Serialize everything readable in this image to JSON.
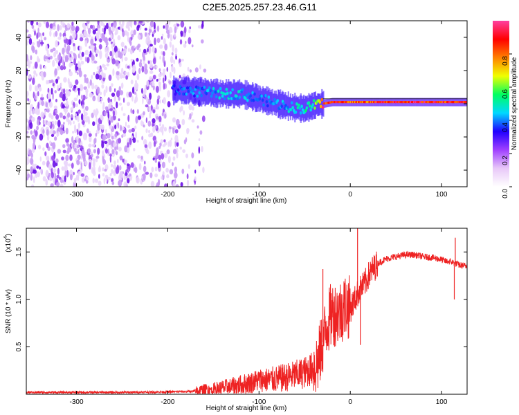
{
  "title": "C2E5.2025.257.23.46.G11",
  "chart_data": [
    {
      "type": "heatmap",
      "title": "C2E5.2025.257.23.46.G11",
      "xlabel": "Height of straight line (km)",
      "ylabel": "Frequency (Hz)",
      "xlim": [
        -355,
        128
      ],
      "ylim": [
        -50,
        50
      ],
      "x_ticks": [
        -300,
        -200,
        -100,
        0,
        100
      ],
      "x_tick_labels": [
        "-300",
        "-200",
        "-100",
        "0",
        "100"
      ],
      "y_ticks": [
        -40,
        -20,
        0,
        20,
        40
      ],
      "y_tick_labels": [
        "-40",
        "-20",
        "0",
        "20",
        "40"
      ],
      "colorbar": {
        "label": "Normalized spectral amplitude",
        "range": [
          0,
          1
        ],
        "ticks": [
          0.0,
          0.2,
          0.4,
          0.6,
          0.8
        ],
        "tick_labels": [
          "0.0",
          "0.2",
          "0.4",
          "0.6",
          "0.8"
        ],
        "colors": [
          "#ffffff",
          "#e8c8f8",
          "#a040ff",
          "#2000ff",
          "#00d8ff",
          "#00ff60",
          "#f0ff00",
          "#ff8000",
          "#ff0000",
          "#ff40a0"
        ]
      },
      "signal_trace": {
        "x": [
          -195,
          -180,
          -160,
          -140,
          -120,
          -100,
          -80,
          -65,
          -50,
          -40,
          -30,
          -20,
          0,
          20,
          50,
          80,
          100,
          128
        ],
        "y": [
          8,
          8,
          7,
          6,
          6,
          3,
          0,
          -2,
          -3,
          -1,
          0,
          1,
          1,
          1,
          1,
          1,
          1,
          1
        ],
        "peak_amplitude": [
          0.35,
          0.4,
          0.4,
          0.45,
          0.45,
          0.4,
          0.4,
          0.45,
          0.5,
          0.55,
          0.9,
          0.9,
          0.85,
          0.85,
          0.95,
          0.9,
          0.9,
          0.85
        ]
      },
      "noise_region_x": [
        -355,
        -170
      ]
    },
    {
      "type": "line",
      "xlabel": "Height of straight line (km)",
      "ylabel": "SNR (10 * v/v)",
      "y_scale_label": "(x10",
      "y_scale_exponent": "4",
      "y_scale_suffix": ")",
      "xlim": [
        -355,
        128
      ],
      "ylim": [
        0,
        1.75
      ],
      "x_ticks": [
        -300,
        -200,
        -100,
        0,
        100
      ],
      "x_tick_labels": [
        "-300",
        "-200",
        "-100",
        "0",
        "100"
      ],
      "y_ticks": [
        0.5,
        1.0,
        1.5
      ],
      "y_tick_labels": [
        "0.5",
        "1.0",
        "1.5"
      ],
      "color": "#ee2222",
      "series": [
        {
          "name": "SNR",
          "x": [
            -355,
            -300,
            -250,
            -200,
            -170,
            -150,
            -130,
            -110,
            -100,
            -90,
            -80,
            -70,
            -60,
            -50,
            -40,
            -35,
            -30,
            -25,
            -20,
            -15,
            -10,
            -5,
            0,
            5,
            10,
            15,
            20,
            25,
            30,
            40,
            50,
            60,
            70,
            80,
            90,
            100,
            105,
            110,
            115,
            120,
            128
          ],
          "y": [
            0.02,
            0.02,
            0.02,
            0.025,
            0.03,
            0.05,
            0.08,
            0.12,
            0.15,
            0.15,
            0.16,
            0.18,
            0.2,
            0.23,
            0.28,
            0.35,
            0.55,
            0.75,
            0.85,
            0.85,
            0.88,
            0.95,
            0.9,
            1.0,
            1.1,
            1.15,
            1.25,
            1.32,
            1.38,
            1.43,
            1.45,
            1.47,
            1.47,
            1.45,
            1.44,
            1.42,
            1.4,
            1.4,
            1.38,
            1.36,
            1.35
          ]
        }
      ],
      "spikes": [
        {
          "x": -30,
          "y": 1.32
        },
        {
          "x": 8,
          "y": 1.75
        },
        {
          "x": 11,
          "y": 0.52
        },
        {
          "x": 115,
          "y": 1.65
        },
        {
          "x": 114,
          "y": 1.0
        }
      ]
    }
  ]
}
